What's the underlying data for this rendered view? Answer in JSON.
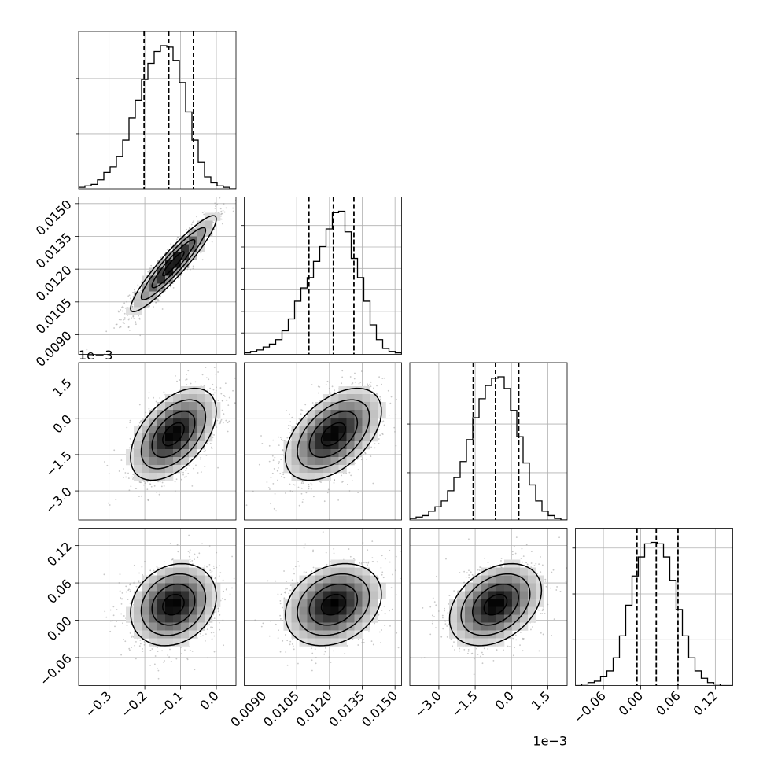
{
  "chart_data": {
    "type": "corner",
    "grid": true,
    "quantile_lines": [
      0.16,
      0.5,
      0.84
    ],
    "colors": {
      "line": "#000000",
      "grid": "#b0b0b0",
      "points": "#9a9a9a"
    },
    "parameters": [
      {
        "range": [
          -0.385,
          0.055
        ],
        "ticks": [
          -0.3,
          -0.2,
          -0.1,
          0.0
        ],
        "tick_labels": [
          "−0.3",
          "−0.2",
          "−0.1",
          "0.0"
        ],
        "offset_text": "",
        "quantiles": [
          -0.202,
          -0.133,
          -0.064
        ],
        "hist": [
          1,
          2,
          3,
          6,
          11,
          15,
          22,
          33,
          48,
          60,
          74,
          85,
          93,
          97,
          96,
          87,
          72,
          52,
          33,
          18,
          8,
          4,
          2,
          1,
          0
        ],
        "hist_y_ticks": [
          0.385,
          0.77
        ]
      },
      {
        "range": [
          0.0081,
          0.0153
        ],
        "ticks": [
          0.009,
          0.0105,
          0.012,
          0.0135,
          0.015
        ],
        "tick_labels": [
          "0.0090",
          "0.0105",
          "0.0120",
          "0.0135",
          "0.0150"
        ],
        "offset_text": "",
        "quantiles": [
          0.01106,
          0.01218,
          0.01312
        ],
        "hist": [
          1,
          2,
          3,
          5,
          7,
          10,
          16,
          24,
          36,
          45,
          52,
          63,
          73,
          85,
          96,
          97,
          83,
          65,
          52,
          36,
          20,
          10,
          4,
          2,
          1
        ],
        "hist_y_ticks": [
          0.15,
          0.3,
          0.45,
          0.6,
          0.75,
          0.9
        ]
      },
      {
        "range": [
          -4.2,
          2.3
        ],
        "ticks": [
          -3.0,
          -1.5,
          0.0,
          1.5
        ],
        "tick_labels": [
          "−3.0",
          "−1.5",
          "0.0",
          "1.5"
        ],
        "offset_text": "1e−3",
        "quantiles": [
          -1.58,
          -0.66,
          0.3
        ],
        "hist": [
          1,
          2,
          3,
          6,
          9,
          13,
          20,
          29,
          40,
          55,
          70,
          83,
          92,
          97,
          98,
          90,
          75,
          57,
          39,
          24,
          13,
          6,
          3,
          1,
          0
        ],
        "hist_y_ticks": [
          0.33,
          0.67
        ]
      },
      {
        "range": [
          -0.105,
          0.148
        ],
        "ticks": [
          -0.06,
          0.0,
          0.06,
          0.12
        ],
        "tick_labels": [
          "−0.06",
          "0.00",
          "0.06",
          "0.12"
        ],
        "offset_text": "",
        "quantiles": [
          -0.006,
          0.025,
          0.06
        ],
        "hist": [
          0,
          1,
          2,
          3,
          6,
          10,
          19,
          34,
          55,
          75,
          88,
          97,
          98,
          97,
          88,
          72,
          52,
          34,
          19,
          10,
          5,
          2,
          1,
          0,
          0
        ],
        "hist_y_ticks": [
          0.32,
          0.64,
          0.96
        ]
      }
    ],
    "pairs": [
      {
        "x": 0,
        "y": 1,
        "center": [
          -0.12,
          0.01225
        ],
        "sd": [
          0.06,
          0.0011
        ],
        "corr": 0.93
      },
      {
        "x": 0,
        "y": 2,
        "center": [
          -0.12,
          -0.66
        ],
        "sd": [
          0.06,
          0.95
        ],
        "corr": 0.5
      },
      {
        "x": 1,
        "y": 2,
        "center": [
          0.01218,
          -0.66
        ],
        "sd": [
          0.0011,
          0.95
        ],
        "corr": 0.5
      },
      {
        "x": 0,
        "y": 3,
        "center": [
          -0.12,
          0.025
        ],
        "sd": [
          0.06,
          0.033
        ],
        "corr": 0.2
      },
      {
        "x": 1,
        "y": 3,
        "center": [
          0.01218,
          0.025
        ],
        "sd": [
          0.0011,
          0.033
        ],
        "corr": 0.25
      },
      {
        "x": 2,
        "y": 3,
        "center": [
          -0.66,
          0.025
        ],
        "sd": [
          0.95,
          0.033
        ],
        "corr": 0.35
      }
    ]
  }
}
